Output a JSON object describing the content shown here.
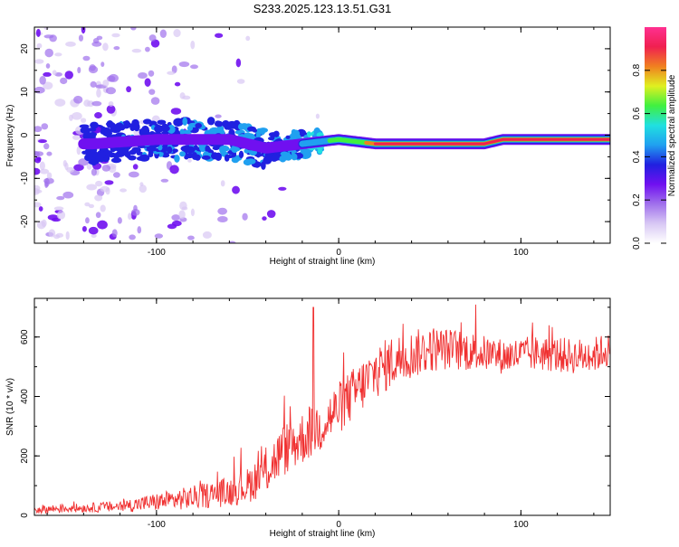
{
  "figure": {
    "title": "S233.2025.123.13.51.G31"
  },
  "colors": {
    "snr_line": "#f03030",
    "axis": "#000000",
    "background": "#ffffff",
    "colormap": [
      "#ffffff",
      "#d8c8f4",
      "#a070ec",
      "#7010f0",
      "#2020e0",
      "#20a0f0",
      "#20e0e0",
      "#40f040",
      "#e0f020",
      "#f08020",
      "#f02050",
      "#ff3090"
    ]
  },
  "chart_data": [
    {
      "type": "heatmap",
      "title": "",
      "xlabel": "Height of straight line (km)",
      "ylabel": "Frequency (Hz)",
      "xlim": [
        -167,
        149
      ],
      "ylim": [
        -25,
        25
      ],
      "xticks": [
        "-100",
        "0",
        "100"
      ],
      "yticks": [
        "-20",
        "-10",
        "0",
        "10",
        "20"
      ],
      "colorbar": {
        "label": "Normalized spectral amplitude",
        "range": [
          0,
          1
        ],
        "ticks": [
          "0.0",
          "0.2",
          "0.4",
          "0.6",
          "0.8"
        ]
      },
      "ridge": {
        "description_points_x": [
          -135,
          -100,
          -60,
          -40,
          -20,
          0,
          20,
          40,
          60,
          80,
          90,
          110,
          149
        ],
        "frequency_y": [
          -2,
          -1,
          -1,
          -3,
          -2,
          -1,
          -2,
          -2,
          -2,
          -2,
          -1,
          -1,
          -1
        ],
        "amplitude": [
          0.1,
          0.2,
          0.25,
          0.2,
          0.35,
          0.55,
          0.8,
          0.95,
          0.95,
          0.95,
          0.75,
          0.85,
          0.85
        ]
      }
    },
    {
      "type": "line",
      "title": "",
      "xlabel": "Height of straight line (km)",
      "ylabel": "SNR (10 * v/v)",
      "xlim": [
        -167,
        149
      ],
      "ylim": [
        0,
        730
      ],
      "xticks": [
        "-100",
        "0",
        "100"
      ],
      "yticks": [
        "0",
        "200",
        "400",
        "600"
      ],
      "series": [
        {
          "envelope_x": [
            -167,
            -140,
            -120,
            -100,
            -80,
            -60,
            -50,
            -40,
            -30,
            -20,
            -10,
            0,
            10,
            20,
            30,
            40,
            50,
            60,
            70,
            80,
            90,
            100,
            110,
            120,
            130,
            140,
            149
          ],
          "mean_y": [
            20,
            25,
            30,
            45,
            60,
            80,
            100,
            150,
            220,
            260,
            300,
            360,
            420,
            480,
            520,
            540,
            560,
            560,
            555,
            545,
            535,
            540,
            545,
            540,
            535,
            540,
            560
          ],
          "spread": [
            15,
            15,
            20,
            30,
            40,
            50,
            60,
            80,
            90,
            90,
            90,
            90,
            90,
            90,
            90,
            80,
            80,
            70,
            70,
            60,
            60,
            60,
            60,
            60,
            60,
            60,
            60
          ]
        }
      ]
    }
  ]
}
